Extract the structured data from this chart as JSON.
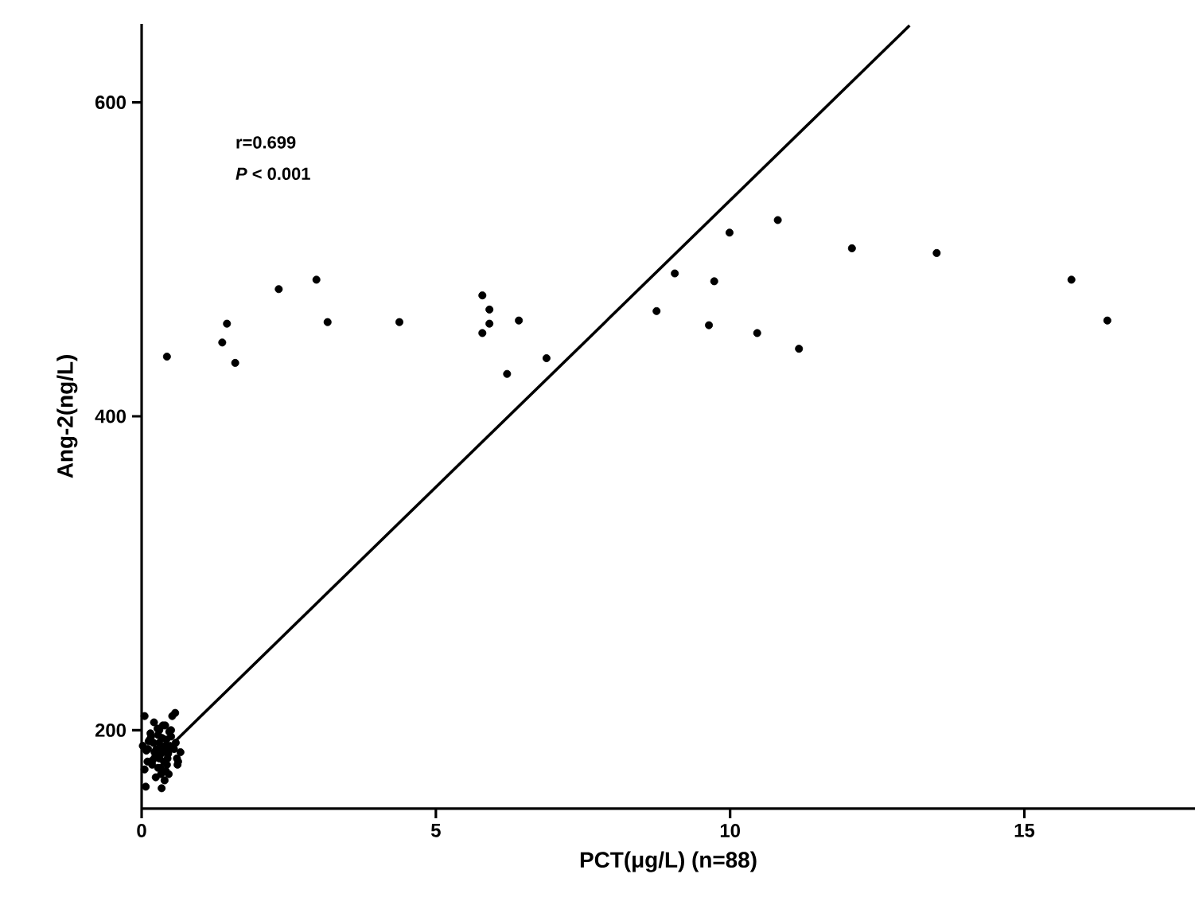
{
  "chart_data": {
    "type": "scatter",
    "xlabel": "PCT(μg/L) (n=88)",
    "ylabel": "Ang-2(ng/L)",
    "annotations": [
      "r=0.699",
      "*P* < 0.001"
    ],
    "xlim": [
      0,
      17.9
    ],
    "ylim": [
      150,
      650
    ],
    "xticks": [
      0,
      5,
      10,
      15
    ],
    "yticks": [
      200,
      400,
      600
    ],
    "grid": false,
    "series": [
      {
        "color": "#000000",
        "marker": "circle",
        "x": [
          0.43,
          1.45,
          1.37,
          1.59,
          2.33,
          2.97,
          3.16,
          4.38,
          5.79,
          5.91,
          5.91,
          5.79,
          6.41,
          6.21,
          6.88,
          8.75,
          9.06,
          9.73,
          9.99,
          9.64,
          10.46,
          10.81,
          11.17,
          12.07,
          13.51,
          15.8,
          16.41,
          0.05,
          0.57,
          0.52,
          0.07,
          0.34,
          0.66,
          0.61,
          0.39,
          0.21,
          0.3,
          0.35,
          0.4,
          0.45,
          0.25,
          0.3,
          0.2,
          0.15,
          0.1,
          0.05,
          0.28,
          0.33,
          0.38,
          0.42,
          0.48,
          0.5,
          0.22,
          0.18,
          0.27,
          0.36,
          0.44,
          0.12,
          0.08,
          0.31,
          0.24,
          0.41,
          0.47,
          0.55,
          0.6,
          0.16,
          0.34,
          0.43,
          0.19,
          0.14,
          0.5,
          0.58,
          0.32,
          0.39,
          0.23,
          0.46,
          0.11,
          0.28,
          0.4,
          0.02,
          0.3,
          0.45,
          0.62
        ],
        "values": [
          438,
          459,
          447,
          434,
          481,
          487,
          460,
          460,
          477,
          468,
          459,
          453,
          461,
          427,
          437,
          467,
          491,
          486,
          517,
          458,
          453,
          525,
          443,
          507,
          504,
          487,
          461,
          209,
          211,
          209,
          164,
          163,
          186,
          178,
          168,
          205,
          200,
          195,
          190,
          185,
          188,
          182,
          192,
          198,
          180,
          175,
          176,
          172,
          180,
          194,
          190,
          196,
          186,
          178,
          201,
          203,
          182,
          193,
          187,
          184,
          170,
          174,
          199,
          188,
          182,
          196,
          188,
          178,
          181,
          194,
          200,
          192,
          176,
          186,
          183,
          172,
          188,
          197,
          203,
          190,
          192,
          186,
          180
        ]
      },
      {
        "type": "line",
        "color": "#000000",
        "marker": "none",
        "line_style": "solid",
        "x": [
          0.57,
          13.05
        ],
        "values": [
          193,
          649
        ]
      }
    ]
  }
}
